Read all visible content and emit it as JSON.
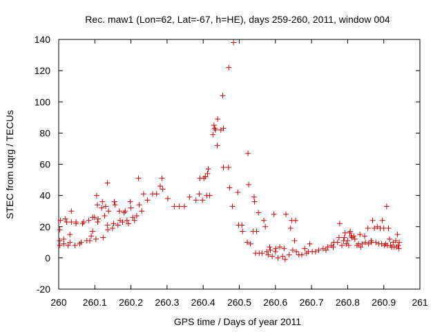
{
  "chart_data": {
    "type": "scatter",
    "title": "Rec. maw1 (Lon=62, Lat=-67, h=HE), days 259-260, 2011, window 004",
    "xlabel": "GPS time / Days of year 2011",
    "ylabel": "STEC from uqrg / TECUs",
    "xlim": [
      260,
      261
    ],
    "ylim": [
      -20,
      140
    ],
    "xticks": [
      {
        "value": 260,
        "label": "260"
      },
      {
        "value": 260.1,
        "label": "260.1"
      },
      {
        "value": 260.2,
        "label": "260.2"
      },
      {
        "value": 260.3,
        "label": "260.3"
      },
      {
        "value": 260.4,
        "label": "260.4"
      },
      {
        "value": 260.5,
        "label": "260.5"
      },
      {
        "value": 260.6,
        "label": "260.6"
      },
      {
        "value": 260.7,
        "label": "260.7"
      },
      {
        "value": 260.8,
        "label": "260.8"
      },
      {
        "value": 260.9,
        "label": "260.9"
      },
      {
        "value": 261,
        "label": "261"
      }
    ],
    "yticks": [
      {
        "value": -20,
        "label": "-20"
      },
      {
        "value": 0,
        "label": "0"
      },
      {
        "value": 20,
        "label": "20"
      },
      {
        "value": 40,
        "label": "40"
      },
      {
        "value": 60,
        "label": "60"
      },
      {
        "value": 80,
        "label": "80"
      },
      {
        "value": 100,
        "label": "100"
      },
      {
        "value": 120,
        "label": "120"
      },
      {
        "value": 140,
        "label": "140"
      }
    ],
    "grid": false,
    "marker": "plus",
    "color": "#cc0000",
    "points": [
      [
        260.003,
        8
      ],
      [
        260.003,
        11
      ],
      [
        260.003,
        18
      ],
      [
        260.005,
        24
      ],
      [
        260.014,
        9
      ],
      [
        260.014,
        12
      ],
      [
        260.018,
        25
      ],
      [
        260.022,
        23
      ],
      [
        260.026,
        8
      ],
      [
        260.031,
        10
      ],
      [
        260.031,
        15
      ],
      [
        260.035,
        23
      ],
      [
        260.035,
        30
      ],
      [
        260.045,
        8
      ],
      [
        260.048,
        22
      ],
      [
        260.048,
        23
      ],
      [
        260.058,
        9
      ],
      [
        260.062,
        10
      ],
      [
        260.066,
        22
      ],
      [
        260.069,
        23
      ],
      [
        260.078,
        11
      ],
      [
        260.083,
        24
      ],
      [
        260.086,
        11
      ],
      [
        260.09,
        14
      ],
      [
        260.094,
        17
      ],
      [
        260.094,
        26
      ],
      [
        260.099,
        26
      ],
      [
        260.103,
        12
      ],
      [
        260.105,
        40
      ],
      [
        260.107,
        34
      ],
      [
        260.108,
        23
      ],
      [
        260.109,
        25
      ],
      [
        260.119,
        32
      ],
      [
        260.121,
        36
      ],
      [
        260.123,
        13
      ],
      [
        260.127,
        27
      ],
      [
        260.13,
        33
      ],
      [
        260.135,
        48
      ],
      [
        260.135,
        21
      ],
      [
        260.136,
        18
      ],
      [
        260.138,
        30
      ],
      [
        260.149,
        19
      ],
      [
        260.152,
        22
      ],
      [
        260.154,
        36
      ],
      [
        260.156,
        34
      ],
      [
        260.164,
        21
      ],
      [
        260.168,
        30
      ],
      [
        260.17,
        24
      ],
      [
        260.177,
        23
      ],
      [
        260.181,
        29
      ],
      [
        260.184,
        30
      ],
      [
        260.189,
        24
      ],
      [
        260.193,
        22
      ],
      [
        260.198,
        36
      ],
      [
        260.2,
        32
      ],
      [
        260.205,
        26
      ],
      [
        260.21,
        24
      ],
      [
        260.216,
        27
      ],
      [
        260.221,
        51
      ],
      [
        260.223,
        34
      ],
      [
        260.23,
        30
      ],
      [
        260.235,
        41
      ],
      [
        260.246,
        37
      ],
      [
        260.26,
        41
      ],
      [
        260.271,
        41
      ],
      [
        260.281,
        46
      ],
      [
        260.286,
        51
      ],
      [
        260.288,
        44
      ],
      [
        260.302,
        38
      ],
      [
        260.32,
        33
      ],
      [
        260.334,
        33
      ],
      [
        260.348,
        33
      ],
      [
        260.362,
        39
      ],
      [
        260.38,
        37
      ],
      [
        260.389,
        41
      ],
      [
        260.391,
        51
      ],
      [
        260.398,
        37
      ],
      [
        260.402,
        51
      ],
      [
        260.406,
        52
      ],
      [
        260.41,
        40
      ],
      [
        260.412,
        54
      ],
      [
        260.414,
        57
      ],
      [
        260.418,
        40
      ],
      [
        260.427,
        79
      ],
      [
        260.43,
        85
      ],
      [
        260.432,
        83
      ],
      [
        260.434,
        82
      ],
      [
        260.439,
        72
      ],
      [
        260.44,
        89
      ],
      [
        260.449,
        82
      ],
      [
        260.454,
        104
      ],
      [
        260.456,
        83
      ],
      [
        260.456,
        58
      ],
      [
        260.47,
        58
      ],
      [
        260.471,
        122
      ],
      [
        260.473,
        45
      ],
      [
        260.481,
        33
      ],
      [
        260.484,
        138
      ],
      [
        260.496,
        42
      ],
      [
        260.498,
        21
      ],
      [
        260.507,
        21
      ],
      [
        260.509,
        17
      ],
      [
        260.522,
        10
      ],
      [
        260.524,
        67
      ],
      [
        260.526,
        47
      ],
      [
        260.531,
        9
      ],
      [
        260.538,
        17
      ],
      [
        260.541,
        39
      ],
      [
        260.542,
        36
      ],
      [
        260.545,
        3
      ],
      [
        260.548,
        17
      ],
      [
        260.553,
        29
      ],
      [
        260.555,
        3
      ],
      [
        260.563,
        3
      ],
      [
        260.568,
        24
      ],
      [
        260.572,
        20
      ],
      [
        260.576,
        4
      ],
      [
        260.58,
        2
      ],
      [
        260.584,
        7
      ],
      [
        260.586,
        5
      ],
      [
        260.591,
        1
      ],
      [
        260.596,
        28
      ],
      [
        260.6,
        4
      ],
      [
        260.601,
        6
      ],
      [
        260.607,
        0
      ],
      [
        260.612,
        7
      ],
      [
        260.62,
        1
      ],
      [
        260.624,
        6
      ],
      [
        260.627,
        -1
      ],
      [
        260.629,
        28
      ],
      [
        260.638,
        2
      ],
      [
        260.642,
        19
      ],
      [
        260.645,
        24
      ],
      [
        260.648,
        5
      ],
      [
        260.653,
        11
      ],
      [
        260.656,
        24
      ],
      [
        260.658,
        4
      ],
      [
        260.665,
        2
      ],
      [
        260.673,
        2
      ],
      [
        260.681,
        6
      ],
      [
        260.686,
        3
      ],
      [
        260.691,
        4
      ],
      [
        260.695,
        9
      ],
      [
        260.702,
        4
      ],
      [
        260.711,
        4
      ],
      [
        260.72,
        5
      ],
      [
        260.732,
        6
      ],
      [
        260.74,
        5
      ],
      [
        260.745,
        7
      ],
      [
        260.755,
        8
      ],
      [
        260.76,
        7
      ],
      [
        260.762,
        10
      ],
      [
        260.772,
        10
      ],
      [
        260.776,
        13
      ],
      [
        260.778,
        22
      ],
      [
        260.784,
        8
      ],
      [
        260.789,
        11
      ],
      [
        260.791,
        13
      ],
      [
        260.793,
        16
      ],
      [
        260.796,
        9
      ],
      [
        260.8,
        11
      ],
      [
        260.803,
        8
      ],
      [
        260.806,
        16
      ],
      [
        260.807,
        17
      ],
      [
        260.81,
        14
      ],
      [
        260.812,
        13
      ],
      [
        260.817,
        14
      ],
      [
        260.82,
        12
      ],
      [
        260.826,
        8
      ],
      [
        260.83,
        9
      ],
      [
        260.834,
        15
      ],
      [
        260.836,
        7
      ],
      [
        260.84,
        9
      ],
      [
        260.847,
        14
      ],
      [
        260.849,
        10
      ],
      [
        260.856,
        19
      ],
      [
        260.858,
        9
      ],
      [
        260.865,
        11
      ],
      [
        260.866,
        10
      ],
      [
        260.869,
        24
      ],
      [
        260.874,
        19
      ],
      [
        260.878,
        10
      ],
      [
        260.882,
        20
      ],
      [
        260.886,
        9
      ],
      [
        260.89,
        19
      ],
      [
        260.894,
        9
      ],
      [
        260.896,
        24
      ],
      [
        260.9,
        19
      ],
      [
        260.902,
        8
      ],
      [
        260.905,
        9
      ],
      [
        260.908,
        33
      ],
      [
        260.91,
        8
      ],
      [
        260.913,
        19
      ],
      [
        260.916,
        12
      ],
      [
        260.919,
        8
      ],
      [
        260.922,
        7
      ],
      [
        260.926,
        10
      ],
      [
        260.929,
        7
      ],
      [
        260.933,
        11
      ],
      [
        260.935,
        7
      ],
      [
        260.938,
        15
      ],
      [
        260.94,
        8
      ],
      [
        260.942,
        6
      ],
      [
        260.943,
        10
      ]
    ]
  }
}
